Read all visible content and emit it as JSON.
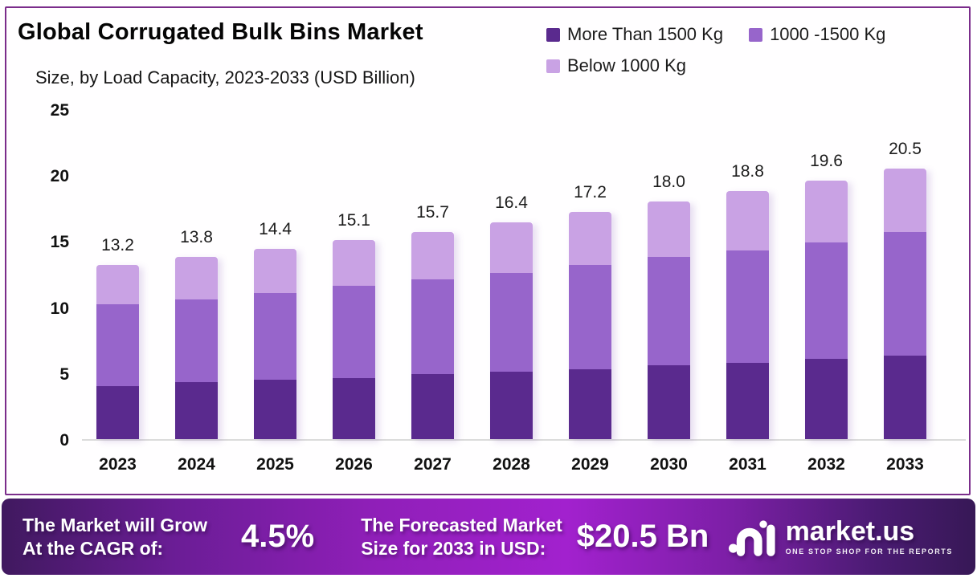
{
  "header": {
    "title": "Global Corrugated Bulk Bins Market",
    "subtitle": "Size, by Load Capacity, 2023-2033 (USD Billion)"
  },
  "chart_data": {
    "type": "bar",
    "stacked": true,
    "title": "Global Corrugated Bulk Bins Market Size, by Load Capacity, 2023-2033 (USD Billion)",
    "categories": [
      "2023",
      "2024",
      "2025",
      "2026",
      "2027",
      "2028",
      "2029",
      "2030",
      "2031",
      "2032",
      "2033"
    ],
    "series": [
      {
        "name": "More Than 1500 Kg",
        "color": "#5A2A8E",
        "values": [
          4.0,
          4.3,
          4.5,
          4.6,
          4.9,
          5.1,
          5.3,
          5.6,
          5.8,
          6.1,
          6.3
        ]
      },
      {
        "name": "1000 -1500 Kg",
        "color": "#9765CB",
        "values": [
          6.2,
          6.3,
          6.6,
          7.0,
          7.2,
          7.5,
          7.9,
          8.2,
          8.5,
          8.8,
          9.4
        ]
      },
      {
        "name": "Below 1000 Kg",
        "color": "#C9A2E4",
        "values": [
          3.0,
          3.2,
          3.3,
          3.5,
          3.6,
          3.8,
          4.0,
          4.2,
          4.5,
          4.7,
          4.8
        ]
      }
    ],
    "totals": [
      13.2,
      13.8,
      14.4,
      15.1,
      15.7,
      16.4,
      17.2,
      18.0,
      18.8,
      19.6,
      20.5
    ],
    "xlabel": "",
    "ylabel": "",
    "ylim": [
      0,
      25
    ],
    "yticks": [
      0,
      5,
      10,
      15,
      20,
      25
    ],
    "grid": false,
    "legend_position": "top-right"
  },
  "footer": {
    "cagr": {
      "line1": "The Market will Grow",
      "line2": "At the CAGR of:",
      "value": "4.5%"
    },
    "forecast": {
      "line1": "The Forecasted Market",
      "line2": "Size for 2033 in USD:",
      "value": "$20.5 Bn"
    },
    "brand": {
      "name": "market.us",
      "tagline": "ONE STOP SHOP FOR THE REPORTS"
    }
  },
  "colors": {
    "frame_border": "#7B2D8B",
    "panel_background": "#FFFEFF",
    "axis_line": "#DBDBDB",
    "footer_gradient_dark": "#40195F",
    "footer_gradient_bright": "#A221CE",
    "text_dark": "#111111",
    "text_white": "#FFFFFF"
  }
}
